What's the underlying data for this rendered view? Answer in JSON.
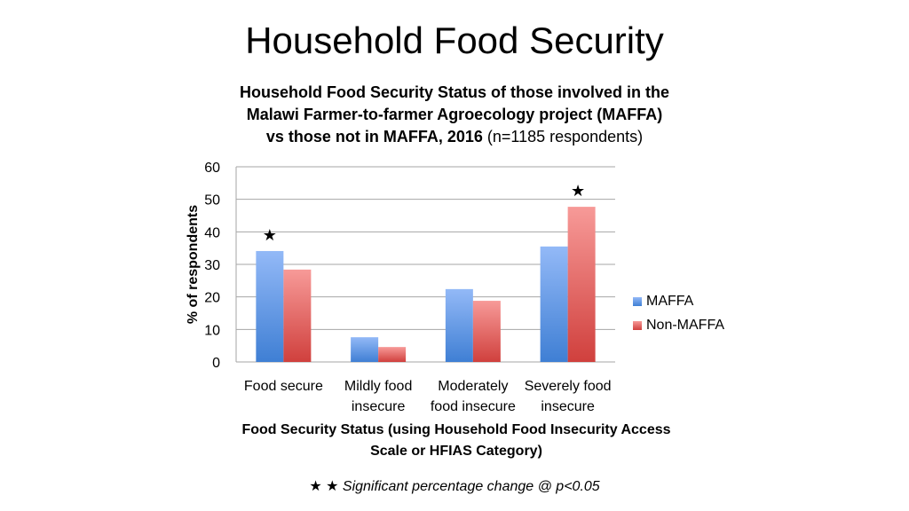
{
  "slide_title": "Household Food Security",
  "colors": {
    "maffa_top": "#93b9f7",
    "maffa_bottom": "#3f7fd4",
    "non_top": "#f79a98",
    "non_bottom": "#d0403d",
    "grid": "#a6a6a6"
  },
  "chart_data": {
    "type": "bar",
    "title_bold": "Household Food Security Status of those involved in the Malawi Farmer-to-farmer Agroecology project (MAFFA) vs those not in MAFFA, 2016",
    "title_normal": "(n=1185 respondents)",
    "title_lines": [
      "Household Food Security Status of those involved in the",
      "Malawi Farmer-to-farmer Agroecology project (MAFFA)",
      "vs those not in MAFFA, 2016"
    ],
    "categories": [
      [
        "Food secure"
      ],
      [
        "Mildly food",
        "insecure"
      ],
      [
        "Moderately",
        "food insecure"
      ],
      [
        "Severely food",
        "insecure"
      ]
    ],
    "series": [
      {
        "name": "MAFFA",
        "values": [
          34.1,
          7.6,
          22.4,
          35.5
        ]
      },
      {
        "name": "Non-MAFFA",
        "values": [
          28.4,
          4.6,
          18.8,
          47.7
        ]
      }
    ],
    "significance_markers": [
      {
        "category_index": 0,
        "symbol": "★"
      },
      {
        "category_index": 3,
        "symbol": "★"
      }
    ],
    "ylabel": "% of respondents",
    "xlabel_lines": [
      "Food Security Status (using Household Food Insecurity Access",
      "Scale or HFIAS Category)"
    ],
    "ylim": [
      0,
      60
    ],
    "yticks": [
      0,
      10,
      20,
      30,
      40,
      50,
      60
    ],
    "grid": true,
    "legend_position": "right"
  },
  "footnote": {
    "stars": "★ ★",
    "text": "Significant percentage change @ p<0.05"
  }
}
